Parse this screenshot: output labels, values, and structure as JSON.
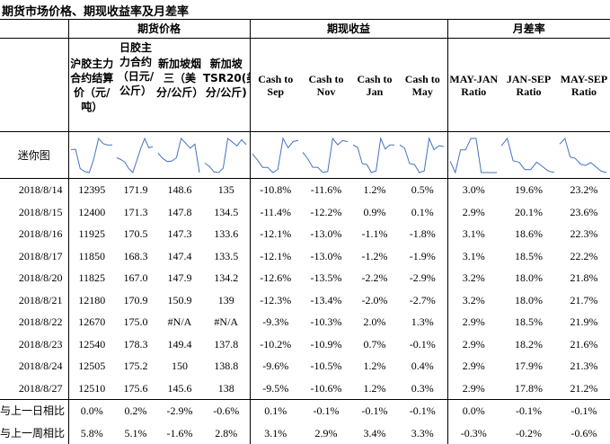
{
  "title": "期货市场价格、期现收益率及月差率",
  "groups": {
    "futures": "期货价格",
    "basis": "期现收益",
    "spread": "月差率"
  },
  "columns": [
    "沪胶主力合约结算价（元/吨）",
    "日胶主力合约（日元/公斤）",
    "新加坡烟三（美分/公斤）",
    "新加坡TSR20(美分/公斤)",
    "Cash to Sep",
    "Cash to Nov",
    "Cash to Jan",
    "Cash to May",
    "MAY-JAN Ratio",
    "JAN-SEP Ratio",
    "MAY-SEP Ratio"
  ],
  "sparkline_label": "迷你图",
  "rows": [
    {
      "date": "2018/8/14",
      "values": [
        "12395",
        "171.9",
        "148.6",
        "135",
        "-10.8%",
        "-11.6%",
        "1.2%",
        "0.5%",
        "3.0%",
        "19.6%",
        "23.2%"
      ]
    },
    {
      "date": "2018/8/15",
      "values": [
        "12400",
        "171.3",
        "147.8",
        "134.5",
        "-11.4%",
        "-12.2%",
        "0.9%",
        "0.1%",
        "2.9%",
        "20.1%",
        "23.6%"
      ]
    },
    {
      "date": "2018/8/16",
      "values": [
        "11925",
        "170.5",
        "147.3",
        "133.6",
        "-12.1%",
        "-13.0%",
        "-1.1%",
        "-1.8%",
        "3.1%",
        "18.6%",
        "22.3%"
      ]
    },
    {
      "date": "2018/8/17",
      "values": [
        "11850",
        "168.3",
        "147.4",
        "133.5",
        "-12.1%",
        "-13.0%",
        "-1.2%",
        "-1.9%",
        "3.1%",
        "18.5%",
        "22.2%"
      ]
    },
    {
      "date": "2018/8/20",
      "values": [
        "11825",
        "167.0",
        "147.9",
        "134.2",
        "-12.6%",
        "-13.5%",
        "-2.2%",
        "-2.9%",
        "3.2%",
        "18.0%",
        "21.8%"
      ]
    },
    {
      "date": "2018/8/21",
      "values": [
        "12180",
        "170.9",
        "150.9",
        "139",
        "-12.3%",
        "-13.4%",
        "-2.0%",
        "-2.7%",
        "3.2%",
        "18.0%",
        "21.7%"
      ]
    },
    {
      "date": "2018/8/22",
      "values": [
        "12670",
        "175.0",
        "#N/A",
        "#N/A",
        "-9.3%",
        "-10.3%",
        "2.0%",
        "1.3%",
        "2.9%",
        "18.5%",
        "21.9%"
      ]
    },
    {
      "date": "2018/8/23",
      "values": [
        "12540",
        "178.3",
        "149.4",
        "137.8",
        "-10.2%",
        "-10.9%",
        "0.7%",
        "-0.1%",
        "2.9%",
        "18.2%",
        "21.6%"
      ]
    },
    {
      "date": "2018/8/24",
      "values": [
        "12505",
        "175.2",
        "150",
        "138.8",
        "-9.6%",
        "-10.5%",
        "1.2%",
        "0.4%",
        "2.9%",
        "17.9%",
        "21.3%"
      ]
    },
    {
      "date": "2018/8/27",
      "values": [
        "12510",
        "175.6",
        "145.6",
        "138",
        "-9.5%",
        "-10.6%",
        "1.2%",
        "0.3%",
        "2.9%",
        "17.8%",
        "21.2%"
      ]
    }
  ],
  "summary": [
    {
      "label": "与上一日相比",
      "values": [
        "0.0%",
        "0.2%",
        "-2.9%",
        "-0.6%",
        "0.1%",
        "-0.1%",
        "-0.1%",
        "-0.1%",
        "0.0%",
        "-0.1%",
        "-0.1%"
      ]
    },
    {
      "label": "与上一周相比",
      "values": [
        "5.8%",
        "5.1%",
        "-1.6%",
        "2.8%",
        "3.1%",
        "2.9%",
        "3.4%",
        "3.3%",
        "-0.3%",
        "-0.2%",
        "-0.6%"
      ]
    }
  ],
  "colors": {
    "sparkline": "#4472c4",
    "border": "#000000"
  }
}
